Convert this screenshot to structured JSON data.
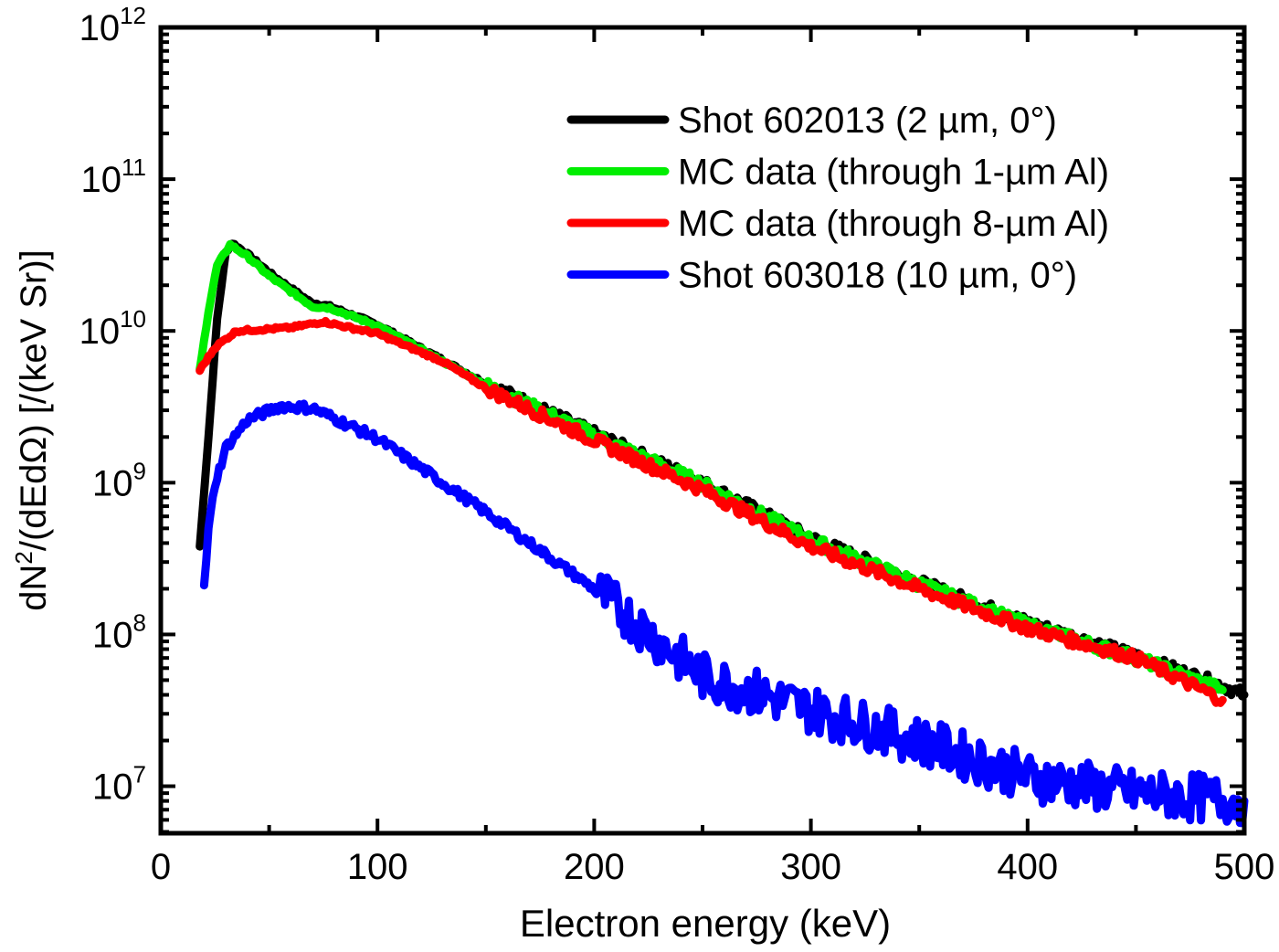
{
  "chart_data": {
    "type": "line",
    "title": "",
    "xlabel": "Electron energy (keV)",
    "ylabel": "dN²/(dEdΩ) [/(keV Sr)]",
    "xlim": [
      0,
      500
    ],
    "ylim": [
      4900000.0,
      1000000000000.0
    ],
    "yscale": "log",
    "xticks": [
      0,
      100,
      200,
      300,
      400,
      500
    ],
    "yticks": [
      {
        "base": "10",
        "exp": "7",
        "value": 10000000.0
      },
      {
        "base": "10",
        "exp": "8",
        "value": 100000000.0
      },
      {
        "base": "10",
        "exp": "9",
        "value": 1000000000.0
      },
      {
        "base": "10",
        "exp": "10",
        "value": 10000000000.0
      },
      {
        "base": "10",
        "exp": "11",
        "value": 100000000000.0
      },
      {
        "base": "10",
        "exp": "12",
        "value": 1000000000000.0
      }
    ],
    "grid": false,
    "legend_position": "top-right",
    "series": [
      {
        "name": "Shot 602013 (2 µm, 0°)",
        "color": "#000000",
        "x": [
          18,
          22,
          26,
          30,
          33,
          40,
          52,
          69,
          78,
          100,
          150,
          200,
          250,
          300,
          350,
          400,
          450,
          490,
          500
        ],
        "y": [
          380000000.0,
          2000000000.0,
          12000000000.0,
          33000000000.0,
          38000000000.0,
          32000000000.0,
          23000000000.0,
          15500000000.0,
          14500000000.0,
          11000000000.0,
          4500000000.0,
          2100000000.0,
          1000000000.0,
          430000000.0,
          220000000.0,
          120000000.0,
          72000000.0,
          46000000.0,
          40000000.0
        ]
      },
      {
        "name": "MC data (through 1-µm Al)",
        "color": "#00ee00",
        "x": [
          18,
          22,
          26,
          32,
          40,
          50,
          70,
          78,
          100,
          150,
          200,
          250,
          300,
          350,
          400,
          450,
          490
        ],
        "y": [
          5500000000.0,
          13500000000.0,
          27000000000.0,
          37000000000.0,
          31000000000.0,
          23000000000.0,
          14500000000.0,
          14200000000.0,
          10800000000.0,
          4400000000.0,
          2050000000.0,
          980000000.0,
          420000000.0,
          215000000.0,
          115000000.0,
          70000000.0,
          43000000.0
        ]
      },
      {
        "name": "MC data (through 8-µm Al)",
        "color": "#ff0000",
        "x": [
          18,
          25,
          35,
          60,
          75,
          100,
          130,
          150,
          200,
          250,
          300,
          350,
          400,
          450,
          490
        ],
        "y": [
          5500000000.0,
          7800000000.0,
          10000000000.0,
          10500000000.0,
          11500000000.0,
          9600000000.0,
          6300000000.0,
          4200000000.0,
          1900000000.0,
          900000000.0,
          380000000.0,
          200000000.0,
          110000000.0,
          70000000.0,
          37000000.0
        ]
      },
      {
        "name": "Shot 603018 (10 µm, 0°)",
        "color": "#0000ff",
        "x": [
          20,
          22,
          25,
          30,
          40,
          55,
          70,
          100,
          150,
          200,
          250,
          300,
          350,
          400,
          450,
          500
        ],
        "y": [
          200000000.0,
          490000000.0,
          980000000.0,
          1700000000.0,
          2600000000.0,
          3200000000.0,
          3100000000.0,
          1950000000.0,
          640000000.0,
          200000000.0,
          53000000.0,
          32000000.0,
          20000000.0,
          11500000.0,
          9000000.0,
          8000000.0
        ]
      }
    ]
  }
}
